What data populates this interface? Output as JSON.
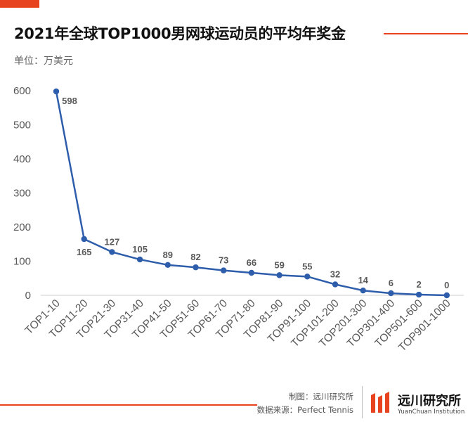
{
  "header": {
    "title": "2021年全球TOP1000男网球运动员的平均年奖金",
    "unit": "单位：万美元"
  },
  "chart_data": {
    "type": "line",
    "title": "2021年全球TOP1000男网球运动员的平均年奖金",
    "ylabel": "单位：万美元",
    "xlabel": "",
    "ylim": [
      0,
      600
    ],
    "yticks": [
      0,
      100,
      200,
      300,
      400,
      500,
      600
    ],
    "categories": [
      "TOP1-10",
      "TOP11-20",
      "TOP21-30",
      "TOP31-40",
      "TOP41-50",
      "TOP51-60",
      "TOP61-70",
      "TOP71-80",
      "TOP81-90",
      "TOP91-100",
      "TOP101-200",
      "TOP201-300",
      "TOP301-400",
      "TOP501-600",
      "TOP901-1000"
    ],
    "series": [
      {
        "name": "平均年奖金",
        "values": [
          598,
          165,
          127,
          105,
          89,
          82,
          73,
          66,
          59,
          55,
          32,
          14,
          6,
          2,
          0
        ]
      }
    ],
    "grid": false,
    "line_color": "#2e5eab"
  },
  "footer": {
    "maker": "制图：远川研究所",
    "source": "数据来源：Perfect Tennis"
  },
  "brand": {
    "name": "远川研究所",
    "en": "YuanChuan Institution"
  },
  "colors": {
    "accent": "#e8431f",
    "line": "#2e5eab"
  }
}
